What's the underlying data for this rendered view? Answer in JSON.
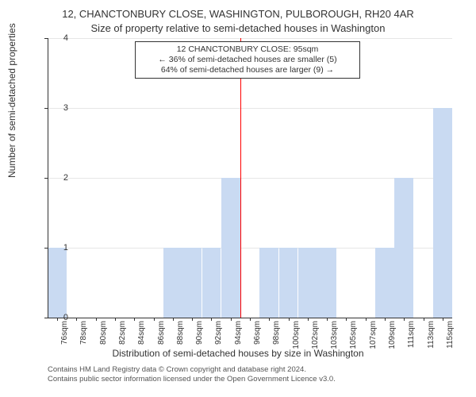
{
  "title": "12, CHANCTONBURY CLOSE, WASHINGTON, PULBOROUGH, RH20 4AR",
  "subtitle": "Size of property relative to semi-detached houses in Washington",
  "y_axis_label": "Number of semi-detached properties",
  "x_axis_label": "Distribution of semi-detached houses by size in Washington",
  "chart": {
    "type": "histogram",
    "ylim": [
      0,
      4
    ],
    "yticks": [
      0,
      1,
      2,
      3,
      4
    ],
    "grid_color": "#e6e6e6",
    "axis_color": "#333333",
    "background_color": "#ffffff",
    "bar_color": "#c9daf2",
    "bar_width_ratio": 0.98,
    "marker": {
      "value": 95,
      "color": "#ff0000",
      "label_lines": [
        "12 CHANCTONBURY CLOSE: 95sqm",
        "← 36% of semi-detached houses are smaller (5)",
        "64% of semi-detached houses are larger (9) →"
      ]
    },
    "x_labels": [
      "76sqm",
      "78sqm",
      "80sqm",
      "82sqm",
      "84sqm",
      "86sqm",
      "88sqm",
      "90sqm",
      "92sqm",
      "94sqm",
      "96sqm",
      "98sqm",
      "100sqm",
      "102sqm",
      "103sqm",
      "105sqm",
      "107sqm",
      "109sqm",
      "111sqm",
      "113sqm",
      "115sqm"
    ],
    "values": [
      1,
      0,
      0,
      0,
      0,
      0,
      1,
      1,
      1,
      2,
      0,
      1,
      1,
      1,
      1,
      0,
      0,
      1,
      2,
      0,
      3
    ],
    "label_fontsize": 11,
    "tick_fontsize": 10
  },
  "footer_line1": "Contains HM Land Registry data © Crown copyright and database right 2024.",
  "footer_line2": "Contains public sector information licensed under the Open Government Licence v3.0."
}
